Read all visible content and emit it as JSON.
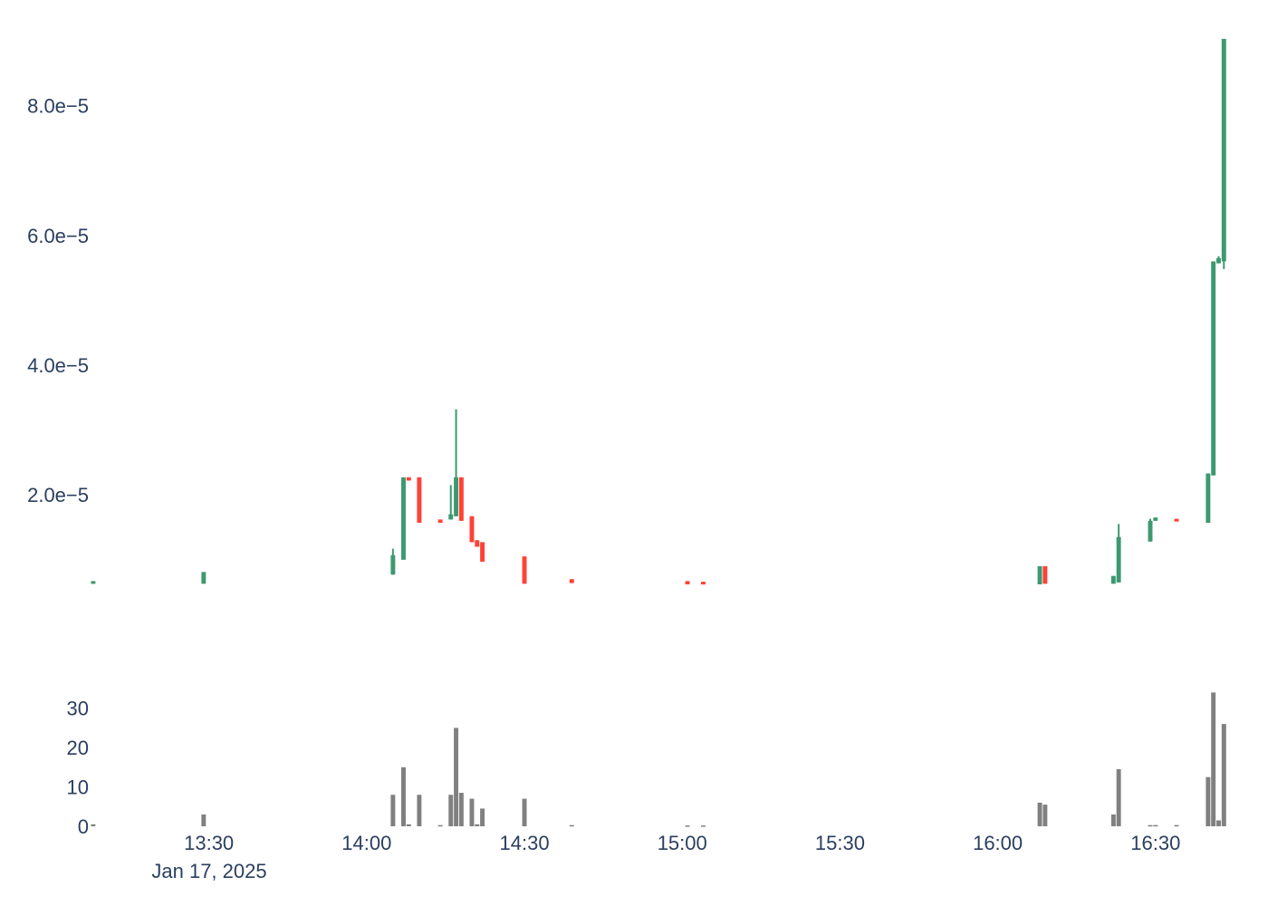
{
  "colors": {
    "increasing": "#3d9970",
    "decreasing": "#ff4136",
    "volume": "#808080",
    "axis_text": "#2a3f5f",
    "background": "#ffffff"
  },
  "chart_data": [
    {
      "type": "candlestick",
      "title": "",
      "xlabel": "",
      "ylabel": "",
      "ylim": [
        5.5e-06,
        9.35e-05
      ],
      "grid": false,
      "y_tick_values": [
        2e-05,
        4e-05,
        6e-05,
        8e-05
      ],
      "y_tick_labels": [
        "2.0e−5",
        "4.0e−5",
        "6.0e−5",
        "8.0e−5"
      ],
      "candles": [
        {
          "t": "13:08",
          "o": 6.3e-06,
          "h": 6.7e-06,
          "l": 6.3e-06,
          "c": 6.7e-06
        },
        {
          "t": "13:29",
          "o": 6.3e-06,
          "h": 8.1e-06,
          "l": 6.3e-06,
          "c": 8.1e-06
        },
        {
          "t": "14:05",
          "o": 7.7e-06,
          "h": 1.17e-05,
          "l": 7.7e-06,
          "c": 1.07e-05
        },
        {
          "t": "14:07",
          "o": 1e-05,
          "h": 2.27e-05,
          "l": 1e-05,
          "c": 2.27e-05
        },
        {
          "t": "14:08",
          "o": 2.27e-05,
          "h": 2.27e-05,
          "l": 2.22e-05,
          "c": 2.22e-05
        },
        {
          "t": "14:10",
          "o": 2.27e-05,
          "h": 2.27e-05,
          "l": 1.57e-05,
          "c": 1.57e-05
        },
        {
          "t": "14:14",
          "o": 1.62e-05,
          "h": 1.62e-05,
          "l": 1.57e-05,
          "c": 1.57e-05
        },
        {
          "t": "14:16",
          "o": 1.62e-05,
          "h": 2.15e-05,
          "l": 1.62e-05,
          "c": 1.7e-05
        },
        {
          "t": "14:17",
          "o": 1.67e-05,
          "h": 3.32e-05,
          "l": 1.67e-05,
          "c": 2.27e-05
        },
        {
          "t": "14:18",
          "o": 2.27e-05,
          "h": 2.27e-05,
          "l": 1.6e-05,
          "c": 1.6e-05
        },
        {
          "t": "14:20",
          "o": 1.67e-05,
          "h": 1.67e-05,
          "l": 1.27e-05,
          "c": 1.27e-05
        },
        {
          "t": "14:21",
          "o": 1.3e-05,
          "h": 1.3e-05,
          "l": 1.2e-05,
          "c": 1.2e-05
        },
        {
          "t": "14:22",
          "o": 1.27e-05,
          "h": 1.27e-05,
          "l": 9.7e-06,
          "c": 9.7e-06
        },
        {
          "t": "14:30",
          "o": 1.05e-05,
          "h": 1.05e-05,
          "l": 6.3e-06,
          "c": 6.3e-06
        },
        {
          "t": "14:39",
          "o": 7e-06,
          "h": 7e-06,
          "l": 6.4e-06,
          "c": 6.4e-06
        },
        {
          "t": "15:01",
          "o": 6.7e-06,
          "h": 6.7e-06,
          "l": 6.2e-06,
          "c": 6.2e-06
        },
        {
          "t": "15:04",
          "o": 6.6e-06,
          "h": 6.6e-06,
          "l": 6.2e-06,
          "c": 6.2e-06
        },
        {
          "t": "16:08",
          "o": 6.2e-06,
          "h": 9e-06,
          "l": 6.2e-06,
          "c": 9e-06
        },
        {
          "t": "16:09",
          "o": 9e-06,
          "h": 9e-06,
          "l": 6.3e-06,
          "c": 6.3e-06
        },
        {
          "t": "16:22",
          "o": 6.3e-06,
          "h": 7.5e-06,
          "l": 6.3e-06,
          "c": 7.5e-06
        },
        {
          "t": "16:23",
          "o": 6.5e-06,
          "h": 1.55e-05,
          "l": 6.5e-06,
          "c": 1.35e-05
        },
        {
          "t": "16:29",
          "o": 1.28e-05,
          "h": 1.63e-05,
          "l": 1.28e-05,
          "c": 1.6e-05
        },
        {
          "t": "16:30",
          "o": 1.6e-05,
          "h": 1.65e-05,
          "l": 1.6e-05,
          "c": 1.65e-05
        },
        {
          "t": "16:34",
          "o": 1.63e-05,
          "h": 1.63e-05,
          "l": 1.6e-05,
          "c": 1.6e-05
        },
        {
          "t": "16:40",
          "o": 1.57e-05,
          "h": 2.33e-05,
          "l": 1.57e-05,
          "c": 2.33e-05
        },
        {
          "t": "16:41",
          "o": 2.3e-05,
          "h": 5.6e-05,
          "l": 2.3e-05,
          "c": 5.6e-05
        },
        {
          "t": "16:42",
          "o": 5.57e-05,
          "h": 5.68e-05,
          "l": 5.57e-05,
          "c": 5.65e-05
        },
        {
          "t": "16:43",
          "o": 5.6e-05,
          "h": 9.03e-05,
          "l": 5.48e-05,
          "c": 9.03e-05
        }
      ]
    },
    {
      "type": "bar",
      "title": "",
      "xlabel": "",
      "ylabel": "",
      "ylim": [
        0,
        35
      ],
      "grid": false,
      "y_ticks": [
        0,
        10,
        20,
        30
      ],
      "x_ticks": [
        "13:30",
        "14:00",
        "14:30",
        "15:00",
        "15:30",
        "16:00",
        "16:30"
      ],
      "x_date_label": "Jan 17, 2025",
      "x_range": [
        "13:08",
        "16:44"
      ],
      "bars": [
        {
          "t": "13:08",
          "v": 0.5
        },
        {
          "t": "13:29",
          "v": 3
        },
        {
          "t": "14:05",
          "v": 8
        },
        {
          "t": "14:07",
          "v": 15
        },
        {
          "t": "14:08",
          "v": 0.5
        },
        {
          "t": "14:10",
          "v": 8
        },
        {
          "t": "14:14",
          "v": 0.3
        },
        {
          "t": "14:16",
          "v": 8
        },
        {
          "t": "14:17",
          "v": 25
        },
        {
          "t": "14:18",
          "v": 8.5
        },
        {
          "t": "14:20",
          "v": 7
        },
        {
          "t": "14:21",
          "v": 0.5
        },
        {
          "t": "14:22",
          "v": 4.5
        },
        {
          "t": "14:30",
          "v": 7
        },
        {
          "t": "14:39",
          "v": 0.3
        },
        {
          "t": "15:01",
          "v": 0.2
        },
        {
          "t": "15:04",
          "v": 0.2
        },
        {
          "t": "16:08",
          "v": 6
        },
        {
          "t": "16:09",
          "v": 5.5
        },
        {
          "t": "16:22",
          "v": 3
        },
        {
          "t": "16:23",
          "v": 14.5
        },
        {
          "t": "16:29",
          "v": 0.3
        },
        {
          "t": "16:30",
          "v": 0.3
        },
        {
          "t": "16:34",
          "v": 0.3
        },
        {
          "t": "16:40",
          "v": 12.5
        },
        {
          "t": "16:41",
          "v": 34
        },
        {
          "t": "16:42",
          "v": 1.5
        },
        {
          "t": "16:43",
          "v": 26
        }
      ]
    }
  ]
}
